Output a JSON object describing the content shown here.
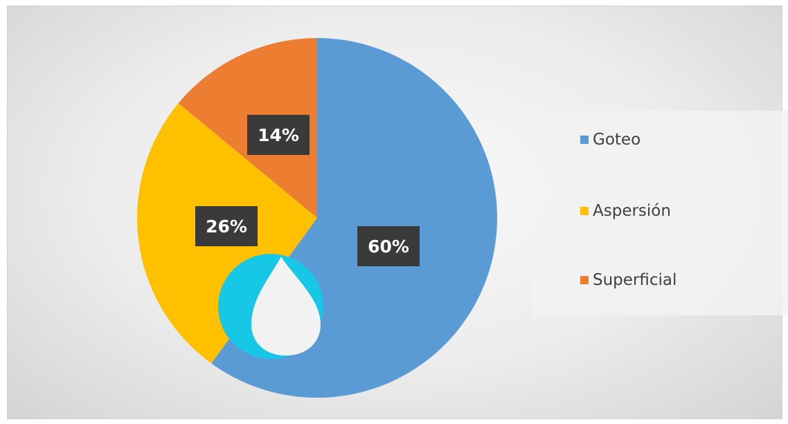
{
  "chart_data": {
    "type": "pie",
    "categories": [
      "Goteo",
      "Aspersión",
      "Superficial"
    ],
    "values": [
      60,
      26,
      14
    ],
    "data_labels": [
      "60%",
      "26%",
      "14%"
    ],
    "colors": [
      "#5b9bd5",
      "#ffc000",
      "#ed7d31"
    ],
    "legend_position": "right",
    "title": ""
  },
  "overlay": {
    "icon": "water-drop-icon",
    "circle_color": "#16c8e6",
    "drop_color": "#f2f2f2"
  }
}
